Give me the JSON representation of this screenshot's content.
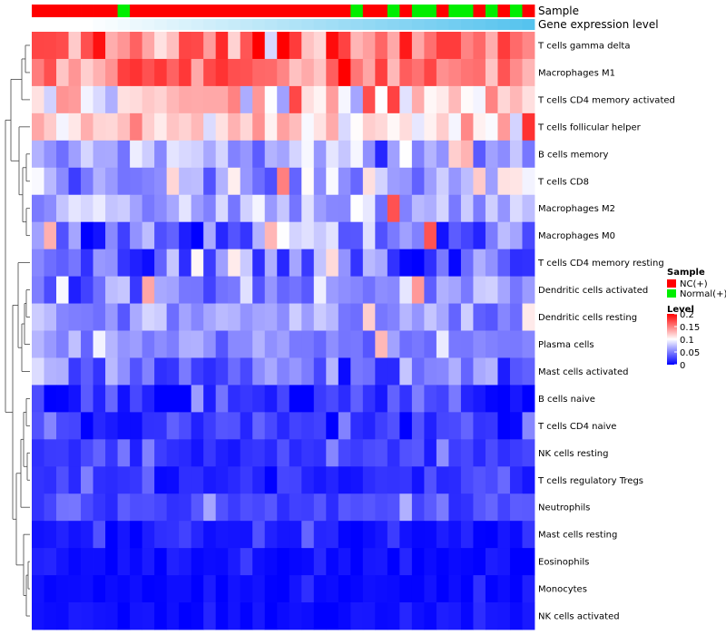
{
  "chart_data": {
    "type": "heatmap",
    "annotation_rows": [
      "Sample",
      "Gene expression level"
    ],
    "rows": [
      "T cells gamma delta",
      "Macrophages M1",
      "T cells CD4 memory activated",
      "T cells follicular helper",
      "B cells memory",
      "T cells CD8",
      "Macrophages M2",
      "Macrophages M0",
      "T cells CD4 memory resting",
      "Dendritic cells activated",
      "Dendritic cells resting",
      "Plasma cells",
      "Mast cells activated",
      "B cells naive",
      "T cells CD4 naive",
      "NK cells resting",
      "T cells regulatory  Tregs",
      "Neutrophils",
      "Mast cells resting",
      "Eosinophils",
      "Monocytes",
      "NK cells activated"
    ],
    "n_samples": 41,
    "sample_groups": [
      "NC",
      "NC",
      "NC",
      "NC",
      "NC",
      "NC",
      "NC",
      "Normal",
      "NC",
      "NC",
      "NC",
      "NC",
      "NC",
      "NC",
      "NC",
      "NC",
      "NC",
      "NC",
      "NC",
      "NC",
      "NC",
      "NC",
      "NC",
      "NC",
      "NC",
      "NC",
      "Normal",
      "NC",
      "NC",
      "Normal",
      "NC",
      "Normal",
      "Normal",
      "NC",
      "Normal",
      "Normal",
      "NC",
      "Normal",
      "NC",
      "Normal",
      "NC"
    ],
    "sample_legend": {
      "title": "Sample",
      "entries": [
        {
          "label": "NC(+)",
          "key": "NC",
          "color": "#ff0000"
        },
        {
          "label": "Normal(+)",
          "key": "Normal",
          "color": "#00ee00"
        }
      ]
    },
    "expression_bar": {
      "label": "Gene expression level",
      "color_from": "#ffffff",
      "color_to": "#56c3ee",
      "start_fraction": 0.1
    },
    "level_legend": {
      "title": "Level",
      "ticks": [
        0.2,
        0.15,
        0.1,
        0.05,
        0
      ],
      "range": [
        0,
        0.2
      ],
      "colors": {
        "low": "#0000ff",
        "mid": "#ffffff",
        "high": "#ff0000"
      }
    },
    "row_profiles": [
      {
        "mean": 0.15,
        "spread": 0.06
      },
      {
        "mean": 0.15,
        "spread": 0.05
      },
      {
        "mean": 0.12,
        "spread": 0.06
      },
      {
        "mean": 0.12,
        "spread": 0.04
      },
      {
        "mean": 0.07,
        "spread": 0.05
      },
      {
        "mean": 0.07,
        "spread": 0.05
      },
      {
        "mean": 0.07,
        "spread": 0.04
      },
      {
        "mean": 0.05,
        "spread": 0.05
      },
      {
        "mean": 0.03,
        "spread": 0.05
      },
      {
        "mean": 0.05,
        "spread": 0.04
      },
      {
        "mean": 0.06,
        "spread": 0.03
      },
      {
        "mean": 0.06,
        "spread": 0.03
      },
      {
        "mean": 0.04,
        "spread": 0.04
      },
      {
        "mean": 0.02,
        "spread": 0.04
      },
      {
        "mean": 0.02,
        "spread": 0.03
      },
      {
        "mean": 0.02,
        "spread": 0.02
      },
      {
        "mean": 0.02,
        "spread": 0.02
      },
      {
        "mean": 0.03,
        "spread": 0.02
      },
      {
        "mean": 0.01,
        "spread": 0.015
      },
      {
        "mean": 0.005,
        "spread": 0.012
      },
      {
        "mean": 0.003,
        "spread": 0.008
      },
      {
        "mean": 0.005,
        "spread": 0.01
      }
    ]
  }
}
